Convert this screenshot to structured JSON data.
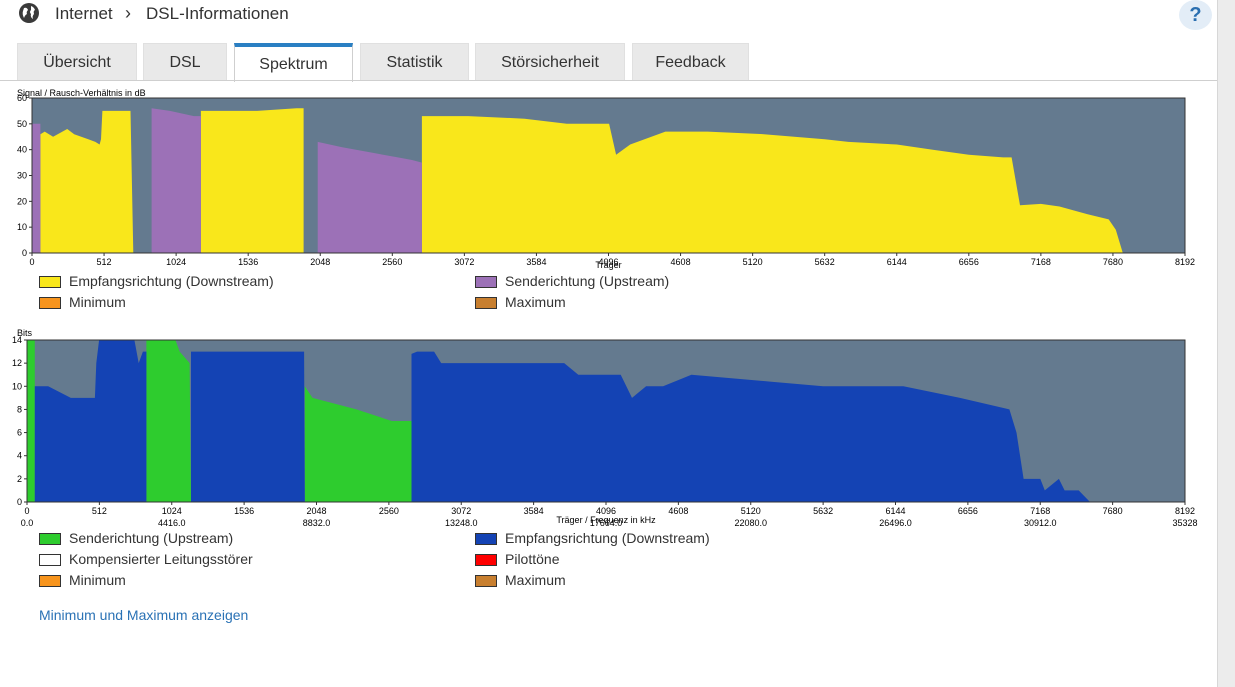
{
  "breadcrumb": {
    "root": "Internet",
    "separator": "›",
    "current": "DSL-Informationen"
  },
  "help_label": "?",
  "tabs": [
    {
      "label": "Übersicht",
      "active": false
    },
    {
      "label": "DSL",
      "active": false
    },
    {
      "label": "Spektrum",
      "active": true
    },
    {
      "label": "Statistik",
      "active": false
    },
    {
      "label": "Störsicherheit",
      "active": false
    },
    {
      "label": "Feedback",
      "active": false
    }
  ],
  "colors": {
    "plot_bg": "#647a8f",
    "yellow": "#f9e71b",
    "purple": "#9c71b7",
    "blue": "#1443b4",
    "green": "#2ecc2e",
    "accent": "#2a7fc3"
  },
  "chart_data": [
    {
      "type": "area",
      "title": "Signal / Rausch-Verhältnis in dB",
      "xlabel": "Träger",
      "ylabel": "Signal / Rausch-Verhältnis in dB",
      "xlim": [
        0,
        8192
      ],
      "ylim": [
        0,
        60
      ],
      "xticks": [
        "0",
        "512",
        "1024",
        "1536",
        "2048",
        "2560",
        "3072",
        "3584",
        "4096",
        "4608",
        "5120",
        "5632",
        "6144",
        "6656",
        "7168",
        "7680",
        "8192"
      ],
      "yticks": [
        "0",
        "10",
        "20",
        "30",
        "40",
        "50",
        "60"
      ],
      "series": [
        {
          "name": "Empfangsrichtung (Downstream)",
          "color": "#f9e71b",
          "segments": [
            [
              [
                60,
                0
              ],
              [
                60,
                46
              ],
              [
                90,
                47
              ],
              [
                150,
                45
              ],
              [
                250,
                48
              ],
              [
                300,
                46
              ],
              [
                400,
                44
              ],
              [
                450,
                43
              ],
              [
                480,
                42
              ],
              [
                490,
                44
              ],
              [
                500,
                55
              ],
              [
                550,
                55
              ],
              [
                650,
                55
              ],
              [
                700,
                55
              ],
              [
                720,
                0
              ]
            ],
            [
              [
                1200,
                0
              ],
              [
                1200,
                55
              ],
              [
                1400,
                55
              ],
              [
                1600,
                55
              ],
              [
                1880,
                56
              ],
              [
                1930,
                56
              ],
              [
                1930,
                0
              ]
            ],
            [
              [
                2770,
                0
              ],
              [
                2770,
                53
              ],
              [
                3100,
                53
              ],
              [
                3500,
                52
              ],
              [
                3800,
                50
              ],
              [
                4000,
                50
              ],
              [
                4100,
                50
              ],
              [
                4150,
                38
              ],
              [
                4250,
                42
              ],
              [
                4500,
                47
              ],
              [
                4800,
                47
              ],
              [
                5200,
                46
              ],
              [
                5632,
                44
              ],
              [
                5800,
                43
              ],
              [
                6144,
                42
              ],
              [
                6400,
                40
              ],
              [
                6656,
                38
              ],
              [
                6900,
                37
              ],
              [
                6960,
                37
              ],
              [
                7020,
                18.5
              ],
              [
                7168,
                19
              ],
              [
                7300,
                18
              ],
              [
                7500,
                15
              ],
              [
                7650,
                13
              ],
              [
                7700,
                9
              ],
              [
                7750,
                0
              ]
            ]
          ]
        },
        {
          "name": "Senderichtung (Upstream)",
          "color": "#9c71b7",
          "segments": [
            [
              [
                0,
                0
              ],
              [
                0,
                50
              ],
              [
                60,
                50
              ],
              [
                60,
                0
              ]
            ],
            [
              [
                850,
                0
              ],
              [
                850,
                56
              ],
              [
                980,
                55
              ],
              [
                1150,
                53
              ],
              [
                1200,
                53
              ],
              [
                1200,
                0
              ]
            ],
            [
              [
                2030,
                0
              ],
              [
                2030,
                43
              ],
              [
                2200,
                41
              ],
              [
                2400,
                39
              ],
              [
                2600,
                37
              ],
              [
                2700,
                36
              ],
              [
                2770,
                35
              ],
              [
                2770,
                0
              ]
            ]
          ]
        },
        {
          "name": "Minimum",
          "color": "#f7941d",
          "segments": []
        },
        {
          "name": "Maximum",
          "color": "#c87f2f",
          "segments": []
        }
      ]
    },
    {
      "type": "area",
      "title": "Bits",
      "xlabel": "Träger / Frequenz in kHz",
      "ylabel": "Bits",
      "xlim": [
        0,
        8192
      ],
      "ylim": [
        0,
        14
      ],
      "xticks": [
        "0",
        "512",
        "1024",
        "1536",
        "2048",
        "2560",
        "3072",
        "3584",
        "4096",
        "4608",
        "5120",
        "5632",
        "6144",
        "6656",
        "7168",
        "7680",
        "8192"
      ],
      "xticks_freq": [
        "0.0",
        "4416.0",
        "8832.0",
        "13248.0",
        "17664.0",
        "22080.0",
        "26496.0",
        "30912.0",
        "35328"
      ],
      "yticks": [
        "0",
        "2",
        "4",
        "6",
        "8",
        "10",
        "12",
        "14"
      ],
      "series": [
        {
          "name": "Senderichtung (Upstream)",
          "color": "#2ecc2e",
          "segments": [
            [
              [
                0,
                0
              ],
              [
                0,
                14
              ],
              [
                55,
                14
              ],
              [
                55,
                0
              ]
            ],
            [
              [
                845,
                0
              ],
              [
                845,
                14
              ],
              [
                1050,
                14
              ],
              [
                1080,
                13
              ],
              [
                1150,
                12
              ],
              [
                1160,
                0
              ]
            ],
            [
              [
                1965,
                0
              ],
              [
                1965,
                10
              ],
              [
                2020,
                9
              ],
              [
                2330,
                8
              ],
              [
                2580,
                7
              ],
              [
                2720,
                7
              ],
              [
                2720,
                0
              ]
            ]
          ]
        },
        {
          "name": "Empfangsrichtung (Downstream)",
          "color": "#1443b4",
          "segments": [
            [
              [
                55,
                0
              ],
              [
                55,
                10
              ],
              [
                150,
                10
              ],
              [
                310,
                9
              ],
              [
                480,
                9
              ],
              [
                490,
                12
              ],
              [
                510,
                14
              ],
              [
                760,
                14
              ],
              [
                790,
                12
              ],
              [
                820,
                13
              ],
              [
                845,
                13
              ],
              [
                845,
                0
              ]
            ],
            [
              [
                1160,
                0
              ],
              [
                1160,
                13
              ],
              [
                1900,
                13
              ],
              [
                1960,
                13
              ],
              [
                1965,
                0
              ]
            ],
            [
              [
                2720,
                0
              ],
              [
                2720,
                12.8
              ],
              [
                2760,
                13
              ],
              [
                2880,
                13
              ],
              [
                2930,
                12
              ],
              [
                3200,
                12
              ],
              [
                3560,
                12
              ],
              [
                3800,
                12
              ],
              [
                3900,
                11
              ],
              [
                4200,
                11
              ],
              [
                4280,
                9
              ],
              [
                4380,
                10
              ],
              [
                4500,
                10
              ],
              [
                4700,
                11
              ],
              [
                5632,
                10
              ],
              [
                5900,
                10
              ],
              [
                6200,
                10
              ],
              [
                6600,
                9
              ],
              [
                6950,
                8
              ],
              [
                7000,
                6
              ],
              [
                7050,
                2
              ],
              [
                7168,
                2
              ],
              [
                7200,
                1
              ],
              [
                7300,
                2
              ],
              [
                7340,
                1
              ],
              [
                7440,
                1
              ],
              [
                7480,
                0.5
              ],
              [
                7520,
                0
              ]
            ]
          ]
        },
        {
          "name": "Kompensierter Leitungsstörer",
          "color": "#ffffff",
          "segments": []
        },
        {
          "name": "Pilottöne",
          "color": "#ff0000",
          "segments": []
        },
        {
          "name": "Minimum",
          "color": "#f7941d",
          "segments": []
        },
        {
          "name": "Maximum",
          "color": "#c87f2f",
          "segments": []
        }
      ]
    }
  ],
  "legend1": [
    {
      "label": "Empfangsrichtung (Downstream)",
      "color": "#f9e71b"
    },
    {
      "label": "Senderichtung (Upstream)",
      "color": "#9c71b7"
    },
    {
      "label": "Minimum",
      "color": "#f7941d"
    },
    {
      "label": "Maximum",
      "color": "#c87f2f"
    }
  ],
  "legend2": [
    {
      "label": "Senderichtung (Upstream)",
      "color": "#2ecc2e"
    },
    {
      "label": "Empfangsrichtung (Downstream)",
      "color": "#1443b4"
    },
    {
      "label": "Kompensierter Leitungsstörer",
      "color": "#ffffff"
    },
    {
      "label": "Pilottöne",
      "color": "#ff0000"
    },
    {
      "label": "Minimum",
      "color": "#f7941d"
    },
    {
      "label": "Maximum",
      "color": "#c87f2f"
    }
  ],
  "minmax_link": "Minimum und Maximum anzeigen"
}
